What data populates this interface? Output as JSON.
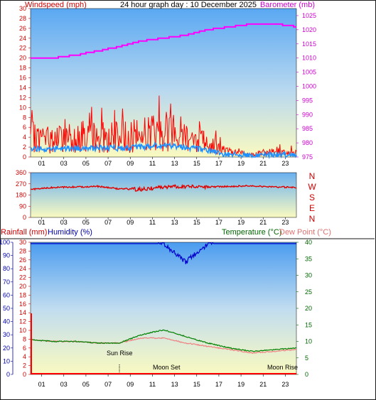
{
  "header": {
    "title": "24 hour graph day : 10 December 2025",
    "left_label": "Windspeed (mph)",
    "right_label": "Barometer (mb)"
  },
  "colors": {
    "wind": "#ff0000",
    "gust_avg": "#1e90ff",
    "barometer": "#ff00ff",
    "direction": "#e00000",
    "humidity": "#0000cc",
    "temperature": "#008000",
    "dewpoint": "#f08080",
    "rainfall": "#ff0000",
    "panel_top": "#6ab0f0",
    "panel_bottom": "#fafac0"
  },
  "x_ticks": [
    "01",
    "03",
    "05",
    "07",
    "09",
    "11",
    "13",
    "15",
    "17",
    "19",
    "21",
    "23"
  ],
  "wind_panel": {
    "y_left_ticks": [
      "0",
      "2",
      "4",
      "6",
      "8",
      "10",
      "12",
      "14",
      "16",
      "18",
      "20",
      "22",
      "24",
      "26",
      "28",
      "30"
    ],
    "y_right_ticks": [
      "975",
      "980",
      "985",
      "990",
      "995",
      "1000",
      "1005",
      "1010",
      "1015",
      "1020",
      "1025"
    ]
  },
  "direction_panel": {
    "y_ticks": [
      "0",
      "90",
      "180",
      "270",
      "360"
    ],
    "compass": [
      "N",
      "W",
      "S",
      "E",
      "N"
    ]
  },
  "lower_panel": {
    "rain_label": "Rainfall (mm)",
    "humidity_label": "Humidity (%)",
    "temp_label": "Temperature (°C)",
    "dew_label": "Dew Point (°C)",
    "humidity_ticks": [
      "0",
      "10",
      "20",
      "30",
      "40",
      "50",
      "60",
      "70",
      "80",
      "90",
      "100"
    ],
    "rain_ticks": [
      "0",
      "2",
      "4",
      "6",
      "8",
      "10",
      "12",
      "14",
      "16",
      "18",
      "20",
      "22",
      "24",
      "26",
      "28",
      "30"
    ],
    "temp_ticks": [
      "0",
      "5",
      "10",
      "15",
      "20",
      "25",
      "30",
      "35",
      "40"
    ],
    "annotations": {
      "sun_rise": "Sun Rise",
      "moon_set": "Moon Set",
      "moon_rise": "Moon Rise"
    }
  },
  "chart_data": [
    {
      "type": "line",
      "title": "24 hour graph day : 10 December 2025",
      "x": [
        0,
        2,
        4,
        6,
        8,
        10,
        12,
        14,
        16,
        18,
        20,
        22,
        24
      ],
      "series": [
        {
          "name": "Windspeed (mph)",
          "values": [
            4,
            3.5,
            4,
            4,
            4,
            4.5,
            5.5,
            4.5,
            3,
            1,
            0.5,
            1,
            1
          ]
        },
        {
          "name": "Barometer (mb)",
          "axis": "right",
          "values": [
            1010,
            1010,
            1011,
            1012.5,
            1014,
            1016,
            1017,
            1018,
            1020,
            1021,
            1022,
            1022,
            1021
          ]
        }
      ],
      "xlabel": "",
      "ylabel": "Windspeed (mph)",
      "ylim": [
        0,
        30
      ],
      "y2lim": [
        975,
        1027.5
      ]
    },
    {
      "type": "line",
      "x": [
        0,
        2,
        4,
        6,
        8,
        10,
        12,
        14,
        16,
        18,
        20,
        22,
        24
      ],
      "series": [
        {
          "name": "Wind direction",
          "values": [
            225,
            240,
            245,
            250,
            230,
            225,
            245,
            250,
            245,
            250,
            255,
            245,
            240
          ]
        }
      ],
      "ylim": [
        0,
        360
      ]
    },
    {
      "type": "line",
      "x": [
        0,
        2,
        4,
        6,
        8,
        10,
        12,
        14,
        16,
        18,
        20,
        22,
        24
      ],
      "series": [
        {
          "name": "Humidity (%)",
          "values": [
            99,
            99,
            99,
            99,
            99,
            99,
            99,
            85,
            99,
            99,
            99,
            99,
            99
          ]
        },
        {
          "name": "Temperature (°C)",
          "axis": "right",
          "values": [
            10.5,
            10,
            10,
            9.5,
            9.5,
            12,
            13.5,
            11.5,
            9.5,
            8,
            7,
            7.5,
            8
          ]
        },
        {
          "name": "Dew Point (°C)",
          "axis": "right",
          "values": [
            10.5,
            10,
            10,
            9.5,
            9.5,
            11,
            11,
            9.5,
            8.5,
            7.5,
            6.5,
            7,
            7.5
          ]
        },
        {
          "name": "Rainfall (mm)",
          "values": [
            0,
            0,
            0,
            0,
            0,
            0,
            0,
            0,
            0,
            0,
            0,
            0,
            0
          ]
        }
      ],
      "ylim": [
        0,
        100
      ],
      "y2lim": [
        0,
        40
      ]
    }
  ]
}
